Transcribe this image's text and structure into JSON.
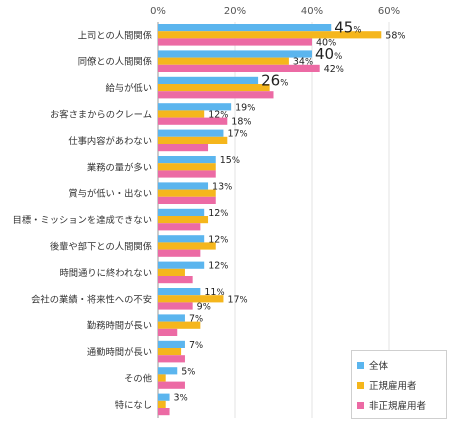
{
  "chart_data": {
    "type": "bar",
    "orientation": "horizontal",
    "xlim": [
      0,
      60
    ],
    "x_ticks": [
      "0%",
      "20%",
      "40%",
      "60%"
    ],
    "grid": true,
    "legend_placement": "bottom-right",
    "categories": [
      "上司との人間関係",
      "同僚との人間関係",
      "給与が低い",
      "お客さまからのクレーム",
      "仕事内容があわない",
      "業務の量が多い",
      "賞与が低い・出ない",
      "目標・ミッションを達成できない",
      "後輩や部下との人間関係",
      "時間通りに終われない",
      "会社の業績・将来性への不安",
      "勤務時間が長い",
      "通勤時間が長い",
      "その他",
      "特になし"
    ],
    "series": [
      {
        "name": "全体",
        "color": "#5bb5ee",
        "values": [
          45,
          40,
          26,
          19,
          17,
          15,
          13,
          12,
          12,
          12,
          11,
          7,
          7,
          5,
          3
        ]
      },
      {
        "name": "正規雇用者",
        "color": "#f5b61c",
        "values": [
          58,
          34,
          29,
          12,
          18,
          15,
          15,
          13,
          15,
          7,
          17,
          11,
          6,
          2,
          2
        ]
      },
      {
        "name": "非正規雇用者",
        "color": "#ec6aa4",
        "values": [
          40,
          42,
          30,
          18,
          13,
          15,
          15,
          11,
          11,
          9,
          9,
          5,
          7,
          7,
          3
        ]
      }
    ],
    "data_labels": [
      {
        "category_index": 0,
        "series_index": 0,
        "number": "45",
        "unit": "%",
        "size": "large"
      },
      {
        "category_index": 0,
        "series_index": 1,
        "number": "58",
        "unit": "%",
        "size": "small"
      },
      {
        "category_index": 0,
        "series_index": 2,
        "number": "40",
        "unit": "%",
        "size": "small"
      },
      {
        "category_index": 1,
        "series_index": 0,
        "number": "40",
        "unit": "%",
        "size": "large"
      },
      {
        "category_index": 1,
        "series_index": 1,
        "number": "34",
        "unit": "%",
        "size": "small"
      },
      {
        "category_index": 1,
        "series_index": 2,
        "number": "42",
        "unit": "%",
        "size": "small"
      },
      {
        "category_index": 2,
        "series_index": 0,
        "number": "26",
        "unit": "%",
        "size": "large"
      },
      {
        "category_index": 3,
        "series_index": 0,
        "number": "19",
        "unit": "%",
        "size": "small"
      },
      {
        "category_index": 3,
        "series_index": 1,
        "number": "12",
        "unit": "%",
        "size": "small"
      },
      {
        "category_index": 3,
        "series_index": 2,
        "number": "18",
        "unit": "%",
        "size": "small"
      },
      {
        "category_index": 4,
        "series_index": 0,
        "number": "17",
        "unit": "%",
        "size": "small"
      },
      {
        "category_index": 5,
        "series_index": 0,
        "number": "15",
        "unit": "%",
        "size": "small"
      },
      {
        "category_index": 6,
        "series_index": 0,
        "number": "13",
        "unit": "%",
        "size": "small"
      },
      {
        "category_index": 7,
        "series_index": 0,
        "number": "12",
        "unit": "%",
        "size": "small"
      },
      {
        "category_index": 8,
        "series_index": 0,
        "number": "12",
        "unit": "%",
        "size": "small"
      },
      {
        "category_index": 9,
        "series_index": 0,
        "number": "12",
        "unit": "%",
        "size": "small"
      },
      {
        "category_index": 10,
        "series_index": 0,
        "number": "11",
        "unit": "%",
        "size": "small"
      },
      {
        "category_index": 10,
        "series_index": 1,
        "number": "17",
        "unit": "%",
        "size": "small"
      },
      {
        "category_index": 10,
        "series_index": 2,
        "number": "9",
        "unit": "%",
        "size": "small"
      },
      {
        "category_index": 11,
        "series_index": 0,
        "number": "7",
        "unit": "%",
        "size": "small"
      },
      {
        "category_index": 12,
        "series_index": 0,
        "number": "7",
        "unit": "%",
        "size": "small"
      },
      {
        "category_index": 13,
        "series_index": 0,
        "number": "5",
        "unit": "%",
        "size": "small"
      },
      {
        "category_index": 14,
        "series_index": 0,
        "number": "3",
        "unit": "%",
        "size": "small"
      }
    ]
  }
}
